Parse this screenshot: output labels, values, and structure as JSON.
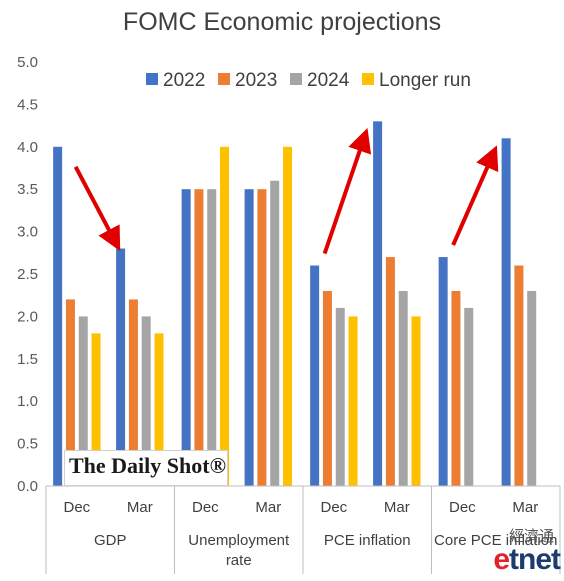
{
  "chart_data": {
    "type": "bar",
    "title": "FOMC Economic projections",
    "ylim": [
      0,
      5
    ],
    "yticks": [
      "0.0",
      "0.5",
      "1.0",
      "1.5",
      "2.0",
      "2.5",
      "3.0",
      "3.5",
      "4.0",
      "4.5",
      "5.0"
    ],
    "legend_position": "top",
    "grid": false,
    "series": [
      {
        "name": "2022",
        "color": "#4472C4"
      },
      {
        "name": "2023",
        "color": "#ED7D31"
      },
      {
        "name": "2024",
        "color": "#A5A5A5"
      },
      {
        "name": "Longer run",
        "color": "#FFC000"
      }
    ],
    "groups": [
      {
        "label": "GDP",
        "subgroups": [
          {
            "label": "Dec",
            "values": [
              4.0,
              2.2,
              2.0,
              1.8
            ]
          },
          {
            "label": "Mar",
            "values": [
              2.8,
              2.2,
              2.0,
              1.8
            ]
          }
        ]
      },
      {
        "label": "Unemployment rate",
        "label_lines": [
          "Unemployment",
          "rate"
        ],
        "subgroups": [
          {
            "label": "Dec",
            "values": [
              3.5,
              3.5,
              3.5,
              4.0
            ]
          },
          {
            "label": "Mar",
            "values": [
              3.5,
              3.5,
              3.6,
              4.0
            ]
          }
        ]
      },
      {
        "label": "PCE inflation",
        "subgroups": [
          {
            "label": "Dec",
            "values": [
              2.6,
              2.3,
              2.1,
              2.0
            ]
          },
          {
            "label": "Mar",
            "values": [
              4.3,
              2.7,
              2.3,
              2.0
            ]
          }
        ]
      },
      {
        "label": "Core PCE inflation",
        "subgroups": [
          {
            "label": "Dec",
            "values": [
              2.7,
              2.3,
              2.1,
              null
            ]
          },
          {
            "label": "Mar",
            "values": [
              4.1,
              2.6,
              2.3,
              null
            ]
          }
        ]
      }
    ],
    "annotations": [
      {
        "type": "arrow",
        "color": "#E00000",
        "direction": "down",
        "group": "GDP"
      },
      {
        "type": "arrow",
        "color": "#E00000",
        "direction": "up",
        "group": "PCE inflation"
      },
      {
        "type": "arrow",
        "color": "#E00000",
        "direction": "up",
        "group": "Core PCE inflation"
      }
    ]
  },
  "branding": {
    "logo": "The Daily Shot®",
    "watermark_cjk": "經濟通",
    "watermark_logo_e": "e",
    "watermark_logo_rest": "tnet"
  }
}
